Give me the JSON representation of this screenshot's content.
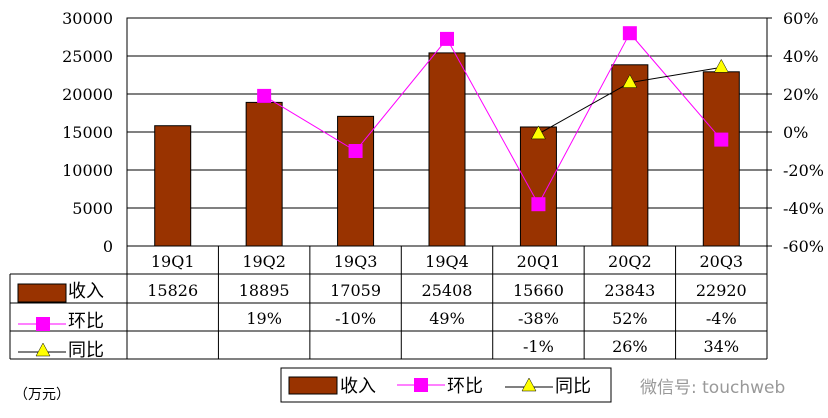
{
  "chart_data": {
    "type": "bar",
    "categories": [
      "19Q1",
      "19Q2",
      "19Q3",
      "19Q4",
      "20Q1",
      "20Q2",
      "20Q3"
    ],
    "series": [
      {
        "name": "收入",
        "type": "bar",
        "axis": "left",
        "values": [
          15826,
          18895,
          17059,
          25408,
          15660,
          23843,
          22920
        ],
        "color": "#993300"
      },
      {
        "name": "环比",
        "type": "line",
        "axis": "right",
        "values": [
          null,
          19,
          -10,
          49,
          -38,
          52,
          -4
        ],
        "labels": [
          "",
          "19%",
          "-10%",
          "49%",
          "-38%",
          "52%",
          "-4%"
        ],
        "color": "#FF00FF",
        "marker": "square"
      },
      {
        "name": "同比",
        "type": "line",
        "axis": "right",
        "values": [
          null,
          null,
          null,
          null,
          -1,
          26,
          34
        ],
        "labels": [
          "",
          "",
          "",
          "",
          "-1%",
          "26%",
          "34%"
        ],
        "color": "#000000",
        "marker": "triangle",
        "marker_color": "#FFFF00"
      }
    ],
    "ylim_left": [
      0,
      30000
    ],
    "yticks_left": [
      "0",
      "5000",
      "10000",
      "15000",
      "20000",
      "25000",
      "30000"
    ],
    "ylim_right": [
      -60,
      60
    ],
    "yticks_right": [
      "-60%",
      "-40%",
      "-20%",
      "0%",
      "20%",
      "40%",
      "60%"
    ],
    "grid": true,
    "legend_placement": "bottom",
    "unit_label": "（万元）"
  },
  "watermark": "微信号: touchweb"
}
